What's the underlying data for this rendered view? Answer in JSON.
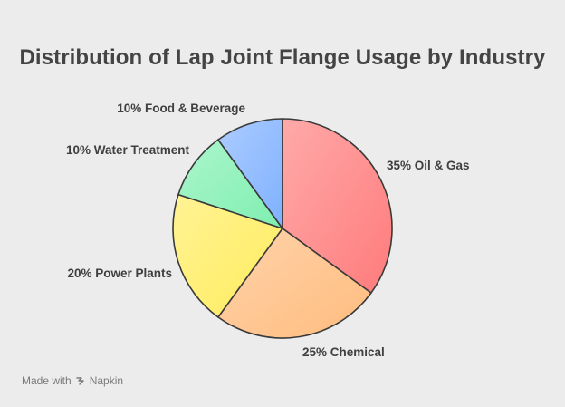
{
  "chart_data": {
    "type": "pie",
    "title": "Distribution of Lap Joint Flange Usage by Industry",
    "slices": [
      {
        "label": "Oil & Gas",
        "value": 35,
        "display": "35% Oil & Gas",
        "color": "#ff7b7b"
      },
      {
        "label": "Chemical",
        "value": 25,
        "display": "25% Chemical",
        "color": "#ffbc7e"
      },
      {
        "label": "Power Plants",
        "value": 20,
        "display": "20% Power Plants",
        "color": "#ffec5c"
      },
      {
        "label": "Water Treatment",
        "value": 10,
        "display": "10% Water Treatment",
        "color": "#7fefb0"
      },
      {
        "label": "Food & Beverage",
        "value": 10,
        "display": "10% Food & Beverage",
        "color": "#7fb1ff"
      }
    ]
  },
  "footer": {
    "made_with": "Made with",
    "brand": "Napkin",
    "logo_icon": "napkin-logo-icon"
  }
}
